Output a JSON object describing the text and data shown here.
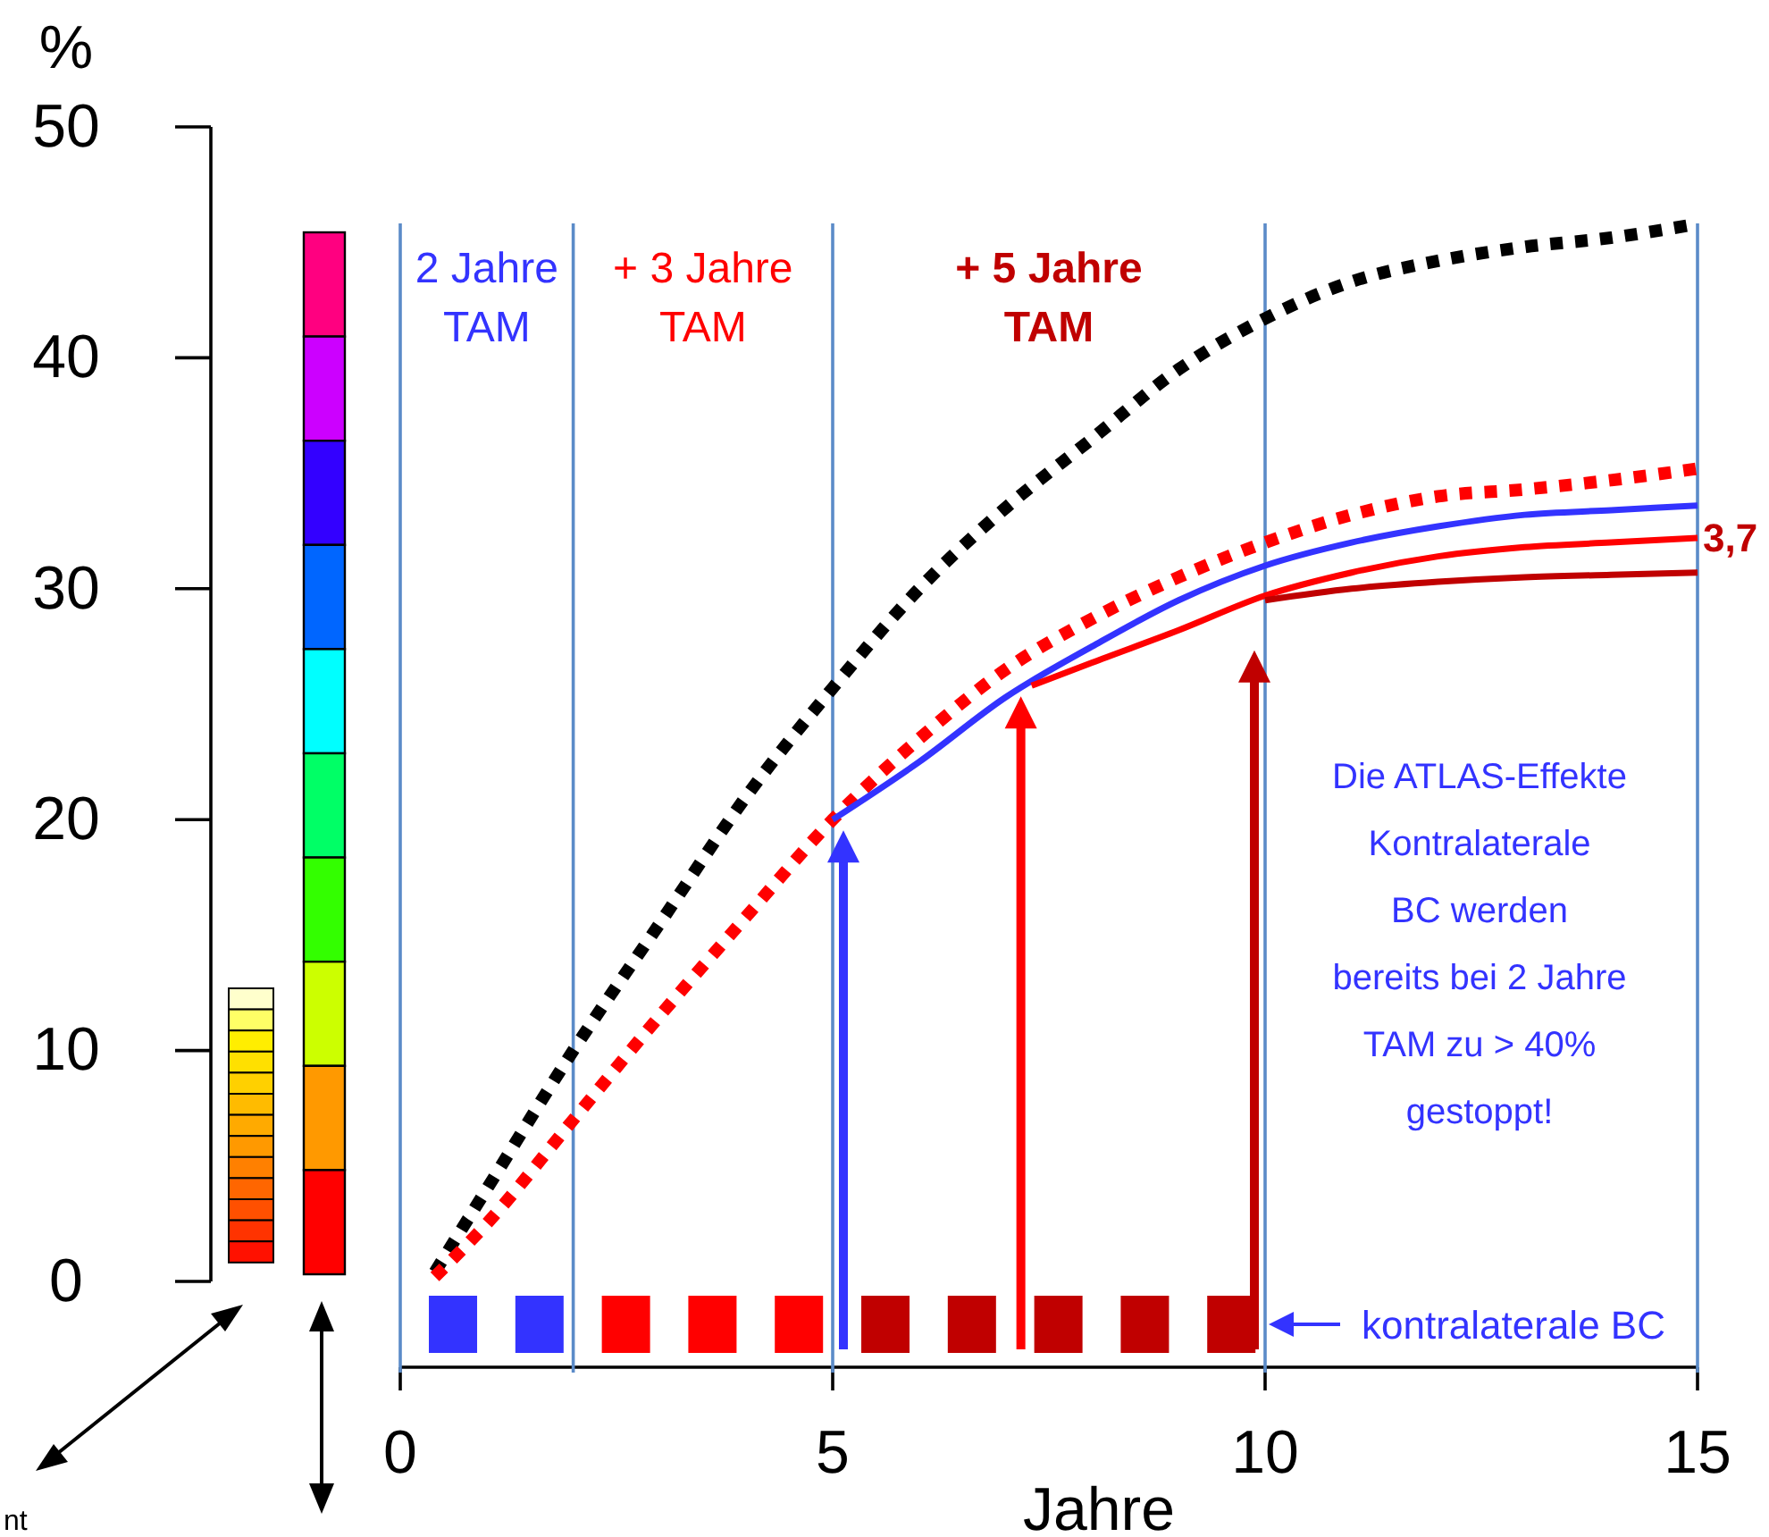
{
  "chart_data": {
    "type": "line",
    "xlabel": "Jahre",
    "ylabel": "%",
    "xlim": [
      0,
      15
    ],
    "ylim": [
      0,
      50
    ],
    "xticks": [
      0,
      5,
      10,
      15
    ],
    "yticks": [
      0,
      10,
      20,
      30,
      40,
      50
    ],
    "series": [
      {
        "color": "#000000",
        "line_style": "dotted",
        "x": [
          0.4,
          1,
          2,
          3,
          4,
          5,
          6,
          7,
          8,
          9,
          10,
          11,
          12,
          13,
          14,
          15
        ],
        "values": [
          0.4,
          4,
          10,
          15.5,
          21,
          25.7,
          30,
          33.5,
          36.5,
          39.5,
          41.7,
          43.3,
          44.2,
          44.8,
          45.2,
          45.8
        ]
      },
      {
        "color": "#ff0000",
        "line_style": "dotted",
        "x": [
          0.4,
          1,
          2,
          3,
          4,
          5,
          6,
          7,
          8,
          9,
          10,
          11,
          12,
          13,
          14,
          15
        ],
        "values": [
          0.2,
          2.5,
          7,
          11.5,
          15.8,
          20,
          23.5,
          26.5,
          28.7,
          30.5,
          32,
          33.2,
          34,
          34.3,
          34.7,
          35.2
        ]
      },
      {
        "color": "#3333ff",
        "line_style": "solid",
        "x": [
          5,
          6,
          7,
          8,
          9,
          10,
          11,
          12,
          13,
          14,
          15
        ],
        "values": [
          20,
          22.5,
          25.3,
          27.5,
          29.5,
          31,
          32,
          32.7,
          33.2,
          33.4,
          33.6
        ]
      },
      {
        "color": "#ff0000",
        "line_style": "solid",
        "x": [
          7.3,
          8,
          9,
          10,
          11,
          12,
          13,
          14,
          15
        ],
        "values": [
          25.8,
          26.8,
          28.2,
          29.7,
          30.7,
          31.4,
          31.8,
          32,
          32.2
        ]
      },
      {
        "color": "#c00000",
        "line_style": "solid",
        "x": [
          10,
          11,
          12,
          13,
          14,
          15
        ],
        "values": [
          29.5,
          30,
          30.3,
          30.5,
          30.6,
          30.7
        ]
      }
    ],
    "ref_lines": [
      {
        "axis": "x",
        "value": 2,
        "color": "#5b8bc8"
      },
      {
        "axis": "x",
        "value": 5,
        "color": "#5b8bc8"
      },
      {
        "axis": "x",
        "value": 10,
        "color": "#5b8bc8"
      }
    ],
    "annotations": [
      "2 Jahre\nTAM",
      "+ 3 Jahre\nTAM",
      "+ 5 Jahre\nTAM",
      {
        "text": "3,7",
        "x": 15,
        "y": 32.2
      },
      "Die ATLAS-Effekte\nKontralaterale\nBC  werden\nbereits bei 2 Jahre\nTAM zu > 40%\ngestoppt!",
      "kontralaterale BC",
      "nt"
    ]
  }
}
